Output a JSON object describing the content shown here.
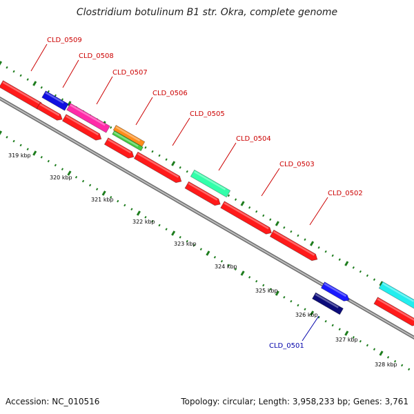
{
  "title": "Clostridium botulinum B1 str. Okra, complete genome",
  "footer": {
    "accession": "Accession: NC_010516",
    "summary": "Topology: circular; Length: 3,958,233 bp; Genes: 3,761"
  },
  "colors": {
    "backbone": "#8c8c8c",
    "tick": "#1e7d1e",
    "forward_label": "#cc0000",
    "reverse_label": "#0000aa"
  },
  "ticks": [
    {
      "label": "319 kbp"
    },
    {
      "label": "320 kbp"
    },
    {
      "label": "321 kbp"
    },
    {
      "label": "322 kbp"
    },
    {
      "label": "323 kbp"
    },
    {
      "label": "324 kbp"
    },
    {
      "label": "325 kbp"
    },
    {
      "label": "326 kbp"
    },
    {
      "label": "327 kbp"
    },
    {
      "label": "328 kbp"
    }
  ],
  "genes": [
    {
      "name": "CLD_0509",
      "strand": "+"
    },
    {
      "name": "CLD_0508",
      "strand": "+"
    },
    {
      "name": "CLD_0507",
      "strand": "+"
    },
    {
      "name": "CLD_0506",
      "strand": "+"
    },
    {
      "name": "CLD_0505",
      "strand": "+"
    },
    {
      "name": "CLD_0504",
      "strand": "+"
    },
    {
      "name": "CLD_0503",
      "strand": "+"
    },
    {
      "name": "CLD_0502",
      "strand": "+"
    },
    {
      "name": "CLD_0501",
      "strand": "-"
    }
  ]
}
